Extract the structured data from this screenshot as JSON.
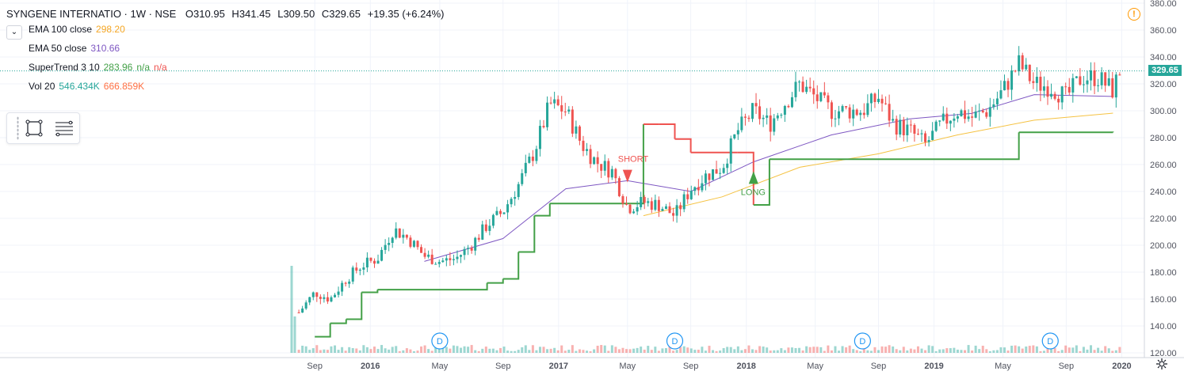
{
  "header": {
    "symbol": "SYNGENE INTERNATIO · 1W · NSE",
    "open_label": "O",
    "open": "310.95",
    "high_label": "H",
    "high": "341.45",
    "low_label": "L",
    "low": "309.50",
    "close_label": "C",
    "close": "329.65",
    "change": "+19.35 (+6.24%)"
  },
  "indicators": [
    {
      "name": "EMA 100 close",
      "values": [
        "298.20"
      ],
      "colors": [
        "#f5a623"
      ]
    },
    {
      "name": "EMA 50 close",
      "values": [
        "310.66"
      ],
      "colors": [
        "#7e57c2"
      ]
    },
    {
      "name": "SuperTrend 3 10",
      "values": [
        "283.96",
        "n/a",
        "n/a"
      ],
      "colors": [
        "#43a047",
        "#43a047",
        "#ef5350"
      ]
    },
    {
      "name": "Vol 20",
      "values": [
        "546.434K",
        "666.859K"
      ],
      "colors": [
        "#26a69a",
        "#ff7043"
      ]
    }
  ],
  "price_tag": "329.65",
  "colors": {
    "up": "#26a69a",
    "down": "#ef5350",
    "ema100": "#f5c242",
    "ema50": "#7e57c2",
    "st_up": "#43a047",
    "st_down": "#ef5350",
    "grid": "#f0f3fa",
    "axis_text": "#50535e"
  },
  "chart_data": {
    "type": "candlestick",
    "title": "SYNGENE INTERNATIO · 1W · NSE",
    "y_axis": {
      "ticks": [
        "120.00",
        "140.00",
        "160.00",
        "180.00",
        "200.00",
        "220.00",
        "240.00",
        "260.00",
        "280.00",
        "300.00",
        "320.00",
        "340.00",
        "360.00",
        "380.00"
      ],
      "ylim": [
        120,
        380
      ]
    },
    "x_axis": {
      "ticks": [
        "Sep",
        "2016",
        "May",
        "Sep",
        "2017",
        "May",
        "Sep",
        "2018",
        "May",
        "Sep",
        "2019",
        "May",
        "Sep",
        "2020"
      ]
    },
    "close_series": [
      {
        "date": "2015-08",
        "close": 150
      },
      {
        "date": "2015-09",
        "close": 165
      },
      {
        "date": "2015-10",
        "close": 160
      },
      {
        "date": "2015-11",
        "close": 175
      },
      {
        "date": "2015-12",
        "close": 185
      },
      {
        "date": "2016-01",
        "close": 190
      },
      {
        "date": "2016-02",
        "close": 212
      },
      {
        "date": "2016-03",
        "close": 205
      },
      {
        "date": "2016-04",
        "close": 192
      },
      {
        "date": "2016-05",
        "close": 188
      },
      {
        "date": "2016-06",
        "close": 190
      },
      {
        "date": "2016-07",
        "close": 200
      },
      {
        "date": "2016-08",
        "close": 215
      },
      {
        "date": "2016-09",
        "close": 225
      },
      {
        "date": "2016-10",
        "close": 245
      },
      {
        "date": "2016-11",
        "close": 270
      },
      {
        "date": "2016-12",
        "close": 305
      },
      {
        "date": "2017-01",
        "close": 300
      },
      {
        "date": "2017-02",
        "close": 275
      },
      {
        "date": "2017-03",
        "close": 262
      },
      {
        "date": "2017-04",
        "close": 255
      },
      {
        "date": "2017-05",
        "close": 228
      },
      {
        "date": "2017-06",
        "close": 232
      },
      {
        "date": "2017-07",
        "close": 230
      },
      {
        "date": "2017-08",
        "close": 222
      },
      {
        "date": "2017-09",
        "close": 242
      },
      {
        "date": "2017-10",
        "close": 252
      },
      {
        "date": "2017-11",
        "close": 258
      },
      {
        "date": "2017-12",
        "close": 285
      },
      {
        "date": "2018-01",
        "close": 300
      },
      {
        "date": "2018-02",
        "close": 290
      },
      {
        "date": "2018-03",
        "close": 305
      },
      {
        "date": "2018-04",
        "close": 320
      },
      {
        "date": "2018-05",
        "close": 310
      },
      {
        "date": "2018-06",
        "close": 300
      },
      {
        "date": "2018-07",
        "close": 300
      },
      {
        "date": "2018-08",
        "close": 300
      },
      {
        "date": "2018-09",
        "close": 310
      },
      {
        "date": "2018-10",
        "close": 290
      },
      {
        "date": "2018-11",
        "close": 285
      },
      {
        "date": "2018-12",
        "close": 275
      },
      {
        "date": "2019-01",
        "close": 290
      },
      {
        "date": "2019-02",
        "close": 300
      },
      {
        "date": "2019-03",
        "close": 295
      },
      {
        "date": "2019-04",
        "close": 300
      },
      {
        "date": "2019-05",
        "close": 315
      },
      {
        "date": "2019-06",
        "close": 335
      },
      {
        "date": "2019-07",
        "close": 320
      },
      {
        "date": "2019-08",
        "close": 318
      },
      {
        "date": "2019-09",
        "close": 310
      },
      {
        "date": "2019-10",
        "close": 325
      },
      {
        "date": "2019-11",
        "close": 325
      },
      {
        "date": "2019-12",
        "close": 315
      },
      {
        "date": "2019-12-end",
        "close": 329.65
      }
    ],
    "ema50": [
      {
        "date": "2016-04",
        "value": 188
      },
      {
        "date": "2016-09",
        "value": 205
      },
      {
        "date": "2017-01",
        "value": 242
      },
      {
        "date": "2017-05",
        "value": 248
      },
      {
        "date": "2017-09",
        "value": 240
      },
      {
        "date": "2018-01",
        "value": 262
      },
      {
        "date": "2018-06",
        "value": 282
      },
      {
        "date": "2018-11",
        "value": 294
      },
      {
        "date": "2019-03",
        "value": 298
      },
      {
        "date": "2019-07",
        "value": 312
      },
      {
        "date": "2019-12",
        "value": 310.66
      }
    ],
    "ema100": [
      {
        "date": "2017-06",
        "value": 222
      },
      {
        "date": "2017-11",
        "value": 236
      },
      {
        "date": "2018-04",
        "value": 258
      },
      {
        "date": "2018-09",
        "value": 268
      },
      {
        "date": "2019-02",
        "value": 282
      },
      {
        "date": "2019-07",
        "value": 293
      },
      {
        "date": "2019-12",
        "value": 298.2
      }
    ],
    "supertrend": [
      {
        "date": "2015-09",
        "value": 132
      },
      {
        "date": "2015-10",
        "value": 142
      },
      {
        "date": "2015-11",
        "value": 145
      },
      {
        "date": "2015-12",
        "value": 165
      },
      {
        "date": "2016-01",
        "value": 167
      },
      {
        "date": "2016-07",
        "value": 167
      },
      {
        "date": "2016-08",
        "value": 172
      },
      {
        "date": "2016-09",
        "value": 175
      },
      {
        "date": "2016-10",
        "value": 195
      },
      {
        "date": "2016-11",
        "value": 222
      },
      {
        "date": "2016-12",
        "value": 231
      },
      {
        "date": "2017-05",
        "value": 231
      },
      {
        "date": "2017-06",
        "value": 290
      },
      {
        "date": "2017-07",
        "value": 290
      },
      {
        "date": "2017-08",
        "value": 279
      },
      {
        "date": "2017-09",
        "value": 269
      },
      {
        "date": "2017-12",
        "value": 269
      },
      {
        "date": "2018-01",
        "value": 230
      },
      {
        "date": "2018-02",
        "value": 264
      },
      {
        "date": "2019-05",
        "value": 264
      },
      {
        "date": "2019-06",
        "value": 284
      },
      {
        "date": "2019-12",
        "value": 283.96
      }
    ],
    "signals": [
      {
        "label": "SHORT",
        "date": "2017-05",
        "price": 262
      },
      {
        "label": "LONG",
        "date": "2018-01",
        "price": 248
      }
    ],
    "dividend_markers": [
      {
        "label": "D",
        "date": "2016-05"
      },
      {
        "label": "D",
        "date": "2017-08"
      },
      {
        "label": "D",
        "date": "2018-08"
      },
      {
        "label": "D",
        "date": "2019-08"
      }
    ]
  }
}
